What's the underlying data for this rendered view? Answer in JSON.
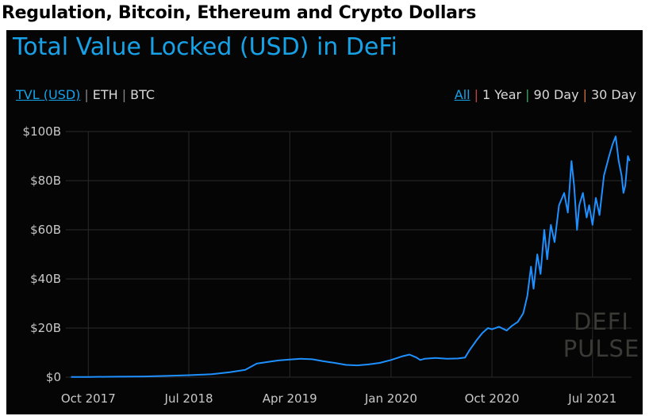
{
  "headline": "Regulation, Bitcoin, Ethereum and Crypto Dollars",
  "chart_title": "Total Value Locked (USD) in DeFi",
  "unit_options": [
    {
      "label": "TVL (USD)",
      "active": true
    },
    {
      "label": "ETH",
      "active": false
    },
    {
      "label": "BTC",
      "active": false
    }
  ],
  "range_options": [
    {
      "label": "All",
      "active": true
    },
    {
      "label": "1 Year",
      "active": false
    },
    {
      "label": "90 Day",
      "active": false
    },
    {
      "label": "30 Day",
      "active": false
    }
  ],
  "separator_colors": [
    "#888888",
    "#c94040",
    "#3fa86a",
    "#d07040"
  ],
  "watermark": [
    "DEFI",
    "PULSE"
  ],
  "colors": {
    "accent": "#17a2e8",
    "line": "#1e90ff",
    "grid": "#2a2a2a",
    "background": "#050505"
  },
  "chart_data": {
    "type": "line",
    "title": "Total Value Locked (USD) in DeFi",
    "xlabel": "",
    "ylabel": "",
    "grid": true,
    "ylim": [
      0,
      100
    ],
    "xlim": [
      "2017-08-01",
      "2021-10-15"
    ],
    "y_ticks": [
      0,
      20,
      40,
      60,
      80,
      100
    ],
    "y_tick_labels": [
      "$0",
      "$20B",
      "$40B",
      "$60B",
      "$80B",
      "$100B"
    ],
    "x_ticks": [
      "2017-10-01",
      "2018-07-01",
      "2019-04-01",
      "2020-01-01",
      "2020-10-01",
      "2021-07-01"
    ],
    "x_tick_labels": [
      "Oct 2017",
      "Jul 2018",
      "Apr 2019",
      "Jan 2020",
      "Oct 2020",
      "Jul 2021"
    ],
    "series": [
      {
        "values_unit": "USD billions",
        "points": [
          [
            "2017-08-15",
            0.1
          ],
          [
            "2017-10-01",
            0.1
          ],
          [
            "2017-12-15",
            0.2
          ],
          [
            "2018-03-01",
            0.3
          ],
          [
            "2018-05-01",
            0.5
          ],
          [
            "2018-07-01",
            0.8
          ],
          [
            "2018-09-01",
            1.2
          ],
          [
            "2018-10-20",
            2.0
          ],
          [
            "2018-12-01",
            3.0
          ],
          [
            "2019-01-01",
            5.5
          ],
          [
            "2019-02-01",
            6.2
          ],
          [
            "2019-03-01",
            6.8
          ],
          [
            "2019-04-01",
            7.2
          ],
          [
            "2019-05-01",
            7.5
          ],
          [
            "2019-06-01",
            7.3
          ],
          [
            "2019-07-01",
            6.5
          ],
          [
            "2019-08-01",
            5.8
          ],
          [
            "2019-09-01",
            5.0
          ],
          [
            "2019-10-01",
            4.8
          ],
          [
            "2019-11-01",
            5.2
          ],
          [
            "2019-12-01",
            5.8
          ],
          [
            "2020-01-01",
            7.0
          ],
          [
            "2020-02-01",
            8.5
          ],
          [
            "2020-02-20",
            9.2
          ],
          [
            "2020-03-10",
            8.0
          ],
          [
            "2020-03-20",
            7.0
          ],
          [
            "2020-04-01",
            7.5
          ],
          [
            "2020-05-01",
            7.8
          ],
          [
            "2020-06-01",
            7.5
          ],
          [
            "2020-07-01",
            7.6
          ],
          [
            "2020-07-20",
            8.0
          ],
          [
            "2020-08-01",
            11.0
          ],
          [
            "2020-08-20",
            15.0
          ],
          [
            "2020-09-05",
            18.0
          ],
          [
            "2020-09-20",
            20.0
          ],
          [
            "2020-10-01",
            19.5
          ],
          [
            "2020-10-20",
            20.5
          ],
          [
            "2020-11-10",
            19.0
          ],
          [
            "2020-11-25",
            21.0
          ],
          [
            "2020-12-10",
            22.5
          ],
          [
            "2020-12-25",
            26.0
          ],
          [
            "2021-01-05",
            33.0
          ],
          [
            "2021-01-15",
            45.0
          ],
          [
            "2021-01-22",
            36.0
          ],
          [
            "2021-02-01",
            50.0
          ],
          [
            "2021-02-10",
            42.0
          ],
          [
            "2021-02-20",
            60.0
          ],
          [
            "2021-02-28",
            48.0
          ],
          [
            "2021-03-10",
            62.0
          ],
          [
            "2021-03-20",
            55.0
          ],
          [
            "2021-04-01",
            70.0
          ],
          [
            "2021-04-15",
            75.0
          ],
          [
            "2021-04-25",
            67.0
          ],
          [
            "2021-05-05",
            88.0
          ],
          [
            "2021-05-12",
            78.0
          ],
          [
            "2021-05-20",
            60.0
          ],
          [
            "2021-05-26",
            70.0
          ],
          [
            "2021-06-05",
            75.0
          ],
          [
            "2021-06-15",
            65.0
          ],
          [
            "2021-06-22",
            70.0
          ],
          [
            "2021-07-01",
            62.0
          ],
          [
            "2021-07-10",
            73.0
          ],
          [
            "2021-07-20",
            66.0
          ],
          [
            "2021-08-01",
            82.0
          ],
          [
            "2021-08-15",
            90.0
          ],
          [
            "2021-08-25",
            95.0
          ],
          [
            "2021-09-02",
            98.0
          ],
          [
            "2021-09-10",
            88.0
          ],
          [
            "2021-09-18",
            82.0
          ],
          [
            "2021-09-23",
            75.0
          ],
          [
            "2021-09-28",
            78.0
          ],
          [
            "2021-10-05",
            90.0
          ],
          [
            "2021-10-10",
            88.0
          ]
        ]
      }
    ]
  }
}
